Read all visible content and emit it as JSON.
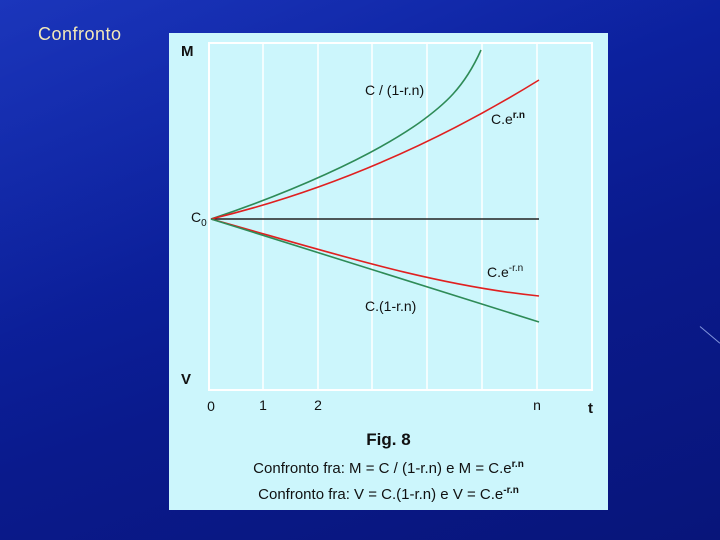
{
  "slide": {
    "title": "Confronto"
  },
  "diagram": {
    "top_axis_label": "M",
    "bottom_axis_label": "V",
    "origin_label": "C",
    "origin_subscript": "0",
    "x_axis_label": "t",
    "x_ticks": [
      "0",
      "1",
      "2",
      "n"
    ],
    "curve_labels": {
      "c_over": "C / (1-r.n)",
      "c_exp_pos_base": "C.e",
      "c_exp_pos_sup": "r.n",
      "c_exp_neg_base": "C.e",
      "c_exp_neg_sup": "-r.n",
      "c_lin": "C.(1-r.n)"
    },
    "colors": {
      "green": "#2e8b57",
      "red": "#e02020",
      "black": "#222222",
      "panel": "#ccf6fc",
      "grid": "#ffffff"
    }
  },
  "caption": {
    "title": "Fig. 8",
    "line1_text": "Confronto fra:  M = C / (1-r.n)  e M = C.e",
    "line1_sup": "r.n",
    "line2_text": "Confronto fra:  V = C.(1-r.n)  e V = C.e",
    "line2_sup": "-r.n"
  }
}
